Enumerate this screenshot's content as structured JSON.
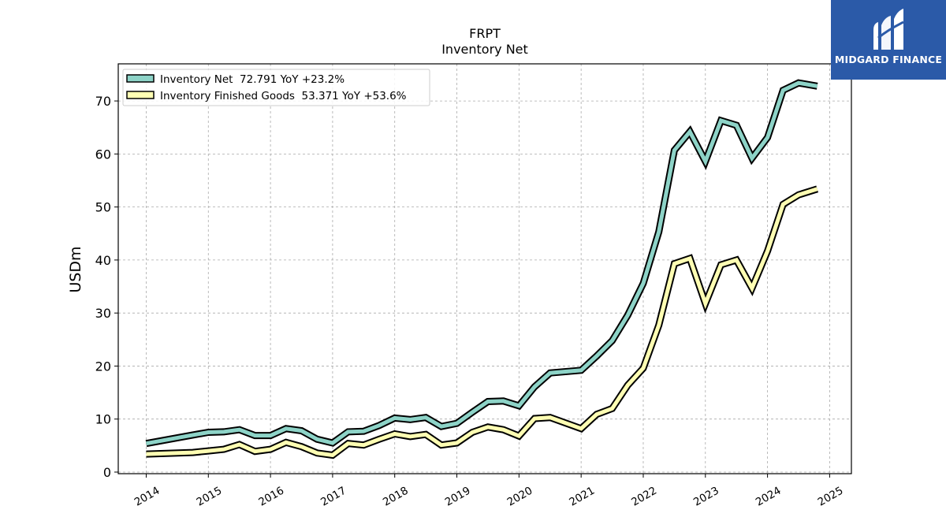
{
  "logo": {
    "text": "MIDGARD FINANCE",
    "background": "#2b5aa8"
  },
  "chart_data": {
    "type": "line",
    "title": "FRPT",
    "subtitle": "Inventory Net",
    "xlabel": "",
    "ylabel": "USDm",
    "xlim": [
      2013.55,
      2025.35
    ],
    "ylim": [
      -0.3,
      77
    ],
    "x_ticks": [
      "2014",
      "2015",
      "2016",
      "2017",
      "2018",
      "2019",
      "2020",
      "2021",
      "2022",
      "2023",
      "2024",
      "2025"
    ],
    "y_ticks": [
      0,
      10,
      20,
      30,
      40,
      50,
      60,
      70
    ],
    "grid": true,
    "legend_position": "top-left",
    "series": [
      {
        "name": "Inventory Net  72.791 YoY +23.2%",
        "color": "#8dd3c7",
        "x": [
          2014.0,
          2014.75,
          2015.0,
          2015.25,
          2015.5,
          2015.75,
          2016.0,
          2016.25,
          2016.5,
          2016.75,
          2017.0,
          2017.25,
          2017.5,
          2017.75,
          2018.0,
          2018.25,
          2018.5,
          2018.75,
          2019.0,
          2019.25,
          2019.5,
          2019.75,
          2020.0,
          2020.25,
          2020.5,
          2021.0,
          2021.25,
          2021.5,
          2021.75,
          2022.0,
          2022.25,
          2022.5,
          2022.75,
          2023.0,
          2023.25,
          2023.5,
          2023.75,
          2024.0,
          2024.25,
          2024.5,
          2024.8
        ],
        "y": [
          5.4,
          7.0,
          7.5,
          7.6,
          8.0,
          6.9,
          6.9,
          8.2,
          7.8,
          6.2,
          5.5,
          7.6,
          7.7,
          8.8,
          10.2,
          9.9,
          10.3,
          8.6,
          9.2,
          11.3,
          13.3,
          13.4,
          12.5,
          16.1,
          18.7,
          19.2,
          21.9,
          24.8,
          29.6,
          35.6,
          45.3,
          60.7,
          64.2,
          58.6,
          66.3,
          65.4,
          59.2,
          63.1,
          72.0,
          73.4,
          72.8
        ]
      },
      {
        "name": "Inventory Finished Goods  53.371 YoY +53.6%",
        "color": "#ffffb3",
        "x": [
          2014.0,
          2014.75,
          2015.0,
          2015.25,
          2015.5,
          2015.75,
          2016.0,
          2016.25,
          2016.5,
          2016.75,
          2017.0,
          2017.25,
          2017.5,
          2017.75,
          2018.0,
          2018.25,
          2018.5,
          2018.75,
          2019.0,
          2019.25,
          2019.5,
          2019.75,
          2020.0,
          2020.25,
          2020.5,
          2021.0,
          2021.25,
          2021.5,
          2021.75,
          2022.0,
          2022.25,
          2022.5,
          2022.75,
          2023.0,
          2023.25,
          2023.5,
          2023.75,
          2024.0,
          2024.25,
          2024.5,
          2024.8
        ],
        "y": [
          3.4,
          3.7,
          4.0,
          4.3,
          5.2,
          3.9,
          4.3,
          5.6,
          4.8,
          3.6,
          3.2,
          5.4,
          5.1,
          6.2,
          7.2,
          6.7,
          7.1,
          5.1,
          5.5,
          7.5,
          8.5,
          8.0,
          6.8,
          10.1,
          10.3,
          8.2,
          10.9,
          12.0,
          16.4,
          19.6,
          27.7,
          39.3,
          40.3,
          31.8,
          39.1,
          40.0,
          34.7,
          41.7,
          50.5,
          52.3,
          53.4
        ]
      }
    ]
  }
}
